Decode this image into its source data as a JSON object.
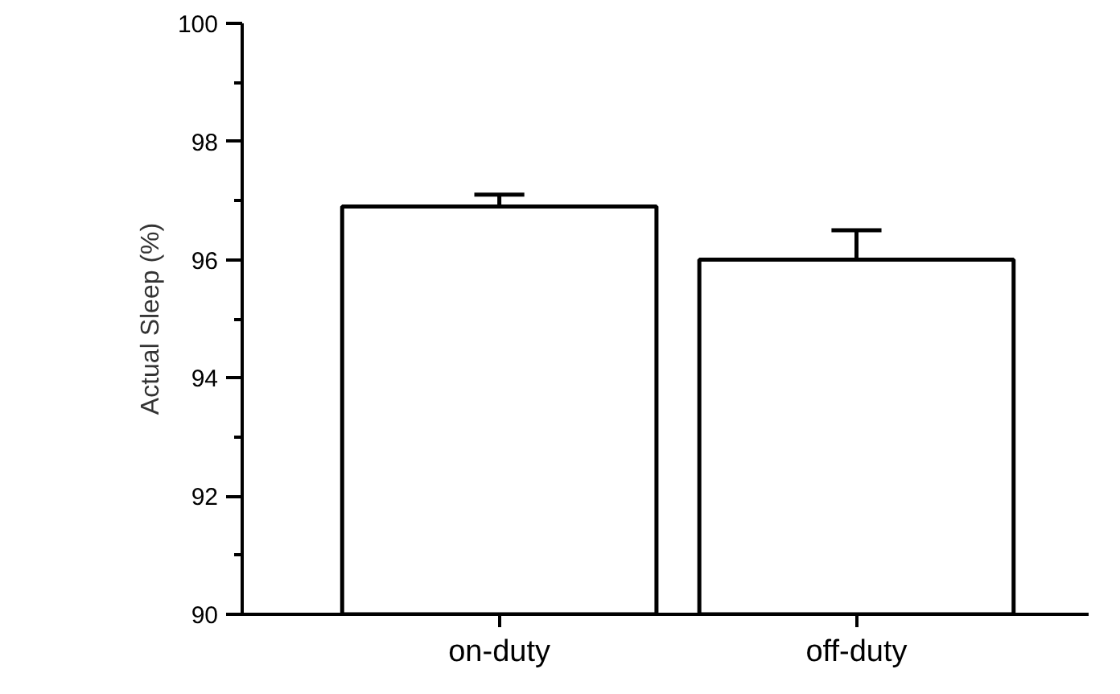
{
  "chart_data": {
    "type": "bar",
    "ylabel": "Actual Sleep (%)",
    "categories": [
      "on-duty",
      "off-duty"
    ],
    "values": [
      96.9,
      96.0
    ],
    "errors": [
      [
        96.9,
        97.1
      ],
      [
        96.0,
        96.5
      ]
    ],
    "color": "#ffffff",
    "ylim": [
      90,
      100
    ],
    "yticks": [
      90,
      {
        "value": 91,
        "label": null
      },
      92,
      {
        "value": 93,
        "label": null
      },
      94,
      {
        "value": 95,
        "label": null
      },
      96,
      {
        "value": 97,
        "label": null
      },
      98,
      {
        "value": 99,
        "label": null
      },
      100
    ],
    "grid": false
  }
}
